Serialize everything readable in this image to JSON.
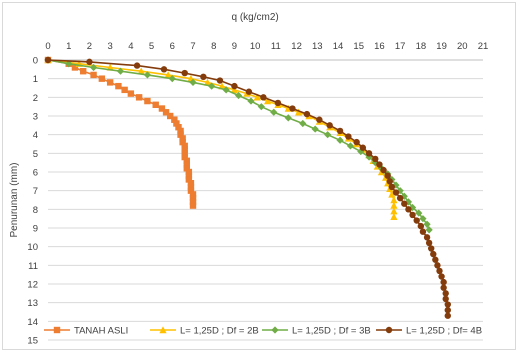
{
  "chart_data": {
    "type": "line",
    "title": "",
    "xlabel": "q (kg/cm2)",
    "ylabel": "Penurunan (mm)",
    "xlim": [
      0,
      21
    ],
    "ylim": [
      0,
      15
    ],
    "y_reversed": true,
    "x_axis_position": "top",
    "xticks": [
      0,
      1,
      2,
      3,
      4,
      5,
      6,
      7,
      8,
      9,
      10,
      11,
      12,
      13,
      14,
      15,
      16,
      17,
      18,
      19,
      20,
      21
    ],
    "yticks": [
      0,
      1,
      2,
      3,
      4,
      5,
      6,
      7,
      8,
      9,
      10,
      11,
      12,
      13,
      14,
      15
    ],
    "grid": "horizontal",
    "legend_position": "bottom",
    "series": [
      {
        "name": "TANAH ASLI",
        "color": "#ed7d31",
        "marker": "square",
        "points": [
          [
            0,
            0
          ],
          [
            1,
            0.2
          ],
          [
            1.3,
            0.4
          ],
          [
            1.7,
            0.6
          ],
          [
            2.2,
            0.8
          ],
          [
            2.6,
            1
          ],
          [
            3,
            1.2
          ],
          [
            3.4,
            1.4
          ],
          [
            3.7,
            1.6
          ],
          [
            4,
            1.8
          ],
          [
            4.4,
            2
          ],
          [
            4.8,
            2.2
          ],
          [
            5.2,
            2.4
          ],
          [
            5.5,
            2.6
          ],
          [
            5.7,
            2.8
          ],
          [
            5.9,
            3
          ],
          [
            6.1,
            3.2
          ],
          [
            6.2,
            3.4
          ],
          [
            6.3,
            3.6
          ],
          [
            6.4,
            3.8
          ],
          [
            6.4,
            4
          ],
          [
            6.5,
            4.2
          ],
          [
            6.5,
            4.4
          ],
          [
            6.6,
            4.6
          ],
          [
            6.6,
            4.8
          ],
          [
            6.6,
            5
          ],
          [
            6.6,
            5.2
          ],
          [
            6.7,
            5.4
          ],
          [
            6.7,
            5.6
          ],
          [
            6.7,
            5.8
          ],
          [
            6.8,
            6
          ],
          [
            6.8,
            6.2
          ],
          [
            6.8,
            6.4
          ],
          [
            6.9,
            6.6
          ],
          [
            6.9,
            6.8
          ],
          [
            6.9,
            7
          ],
          [
            7,
            7.2
          ],
          [
            7,
            7.4
          ],
          [
            7,
            7.6
          ],
          [
            7,
            7.8
          ]
        ]
      },
      {
        "name": "L= 1,25D ; Df = 2B",
        "color": "#ffc000",
        "marker": "triangle",
        "points": [
          [
            0,
            0
          ],
          [
            1.5,
            0.2
          ],
          [
            3,
            0.4
          ],
          [
            4.5,
            0.6
          ],
          [
            5.8,
            0.8
          ],
          [
            6.9,
            1
          ],
          [
            7.7,
            1.2
          ],
          [
            8.4,
            1.4
          ],
          [
            9,
            1.6
          ],
          [
            9.6,
            1.8
          ],
          [
            10.1,
            2
          ],
          [
            10.6,
            2.2
          ],
          [
            11.1,
            2.4
          ],
          [
            11.6,
            2.6
          ],
          [
            12.1,
            2.8
          ],
          [
            12.6,
            3
          ],
          [
            13.1,
            3.3
          ],
          [
            13.6,
            3.6
          ],
          [
            14.1,
            3.9
          ],
          [
            14.5,
            4.2
          ],
          [
            14.9,
            4.5
          ],
          [
            15.2,
            4.8
          ],
          [
            15.5,
            5.1
          ],
          [
            15.7,
            5.4
          ],
          [
            15.9,
            5.7
          ],
          [
            16.1,
            6
          ],
          [
            16.3,
            6.3
          ],
          [
            16.4,
            6.6
          ],
          [
            16.5,
            6.9
          ],
          [
            16.6,
            7.2
          ],
          [
            16.7,
            7.5
          ],
          [
            16.7,
            7.8
          ],
          [
            16.7,
            8.1
          ],
          [
            16.7,
            8.4
          ]
        ]
      },
      {
        "name": "L= 1,25D ; Df = 3B",
        "color": "#70ad47",
        "marker": "diamond",
        "points": [
          [
            0,
            0
          ],
          [
            1,
            0.2
          ],
          [
            2.2,
            0.4
          ],
          [
            3.5,
            0.6
          ],
          [
            4.8,
            0.8
          ],
          [
            6,
            1
          ],
          [
            7,
            1.2
          ],
          [
            7.9,
            1.4
          ],
          [
            8.6,
            1.6
          ],
          [
            9.2,
            1.9
          ],
          [
            9.8,
            2.2
          ],
          [
            10.3,
            2.5
          ],
          [
            10.9,
            2.8
          ],
          [
            11.6,
            3.1
          ],
          [
            12.3,
            3.4
          ],
          [
            12.9,
            3.7
          ],
          [
            13.5,
            4
          ],
          [
            14.1,
            4.3
          ],
          [
            14.6,
            4.6
          ],
          [
            15.1,
            4.9
          ],
          [
            15.5,
            5.2
          ],
          [
            15.8,
            5.5
          ],
          [
            16.1,
            5.8
          ],
          [
            16.4,
            6.1
          ],
          [
            16.6,
            6.4
          ],
          [
            16.8,
            6.7
          ],
          [
            17,
            7
          ],
          [
            17.2,
            7.3
          ],
          [
            17.4,
            7.6
          ],
          [
            17.6,
            7.9
          ],
          [
            17.9,
            8.2
          ],
          [
            18.1,
            8.5
          ],
          [
            18.3,
            8.8
          ],
          [
            18.4,
            9.1
          ]
        ]
      },
      {
        "name": "L= 1,25D ; Df= 4B",
        "color": "#843c0c",
        "marker": "circle",
        "points": [
          [
            0,
            0
          ],
          [
            2,
            0.1
          ],
          [
            4.3,
            0.3
          ],
          [
            5.6,
            0.5
          ],
          [
            6.6,
            0.7
          ],
          [
            7.5,
            0.9
          ],
          [
            8.3,
            1.1
          ],
          [
            9,
            1.4
          ],
          [
            9.7,
            1.7
          ],
          [
            10.4,
            2
          ],
          [
            11.1,
            2.3
          ],
          [
            11.8,
            2.6
          ],
          [
            12.5,
            2.9
          ],
          [
            13.1,
            3.2
          ],
          [
            13.6,
            3.5
          ],
          [
            14.1,
            3.8
          ],
          [
            14.5,
            4.1
          ],
          [
            14.9,
            4.4
          ],
          [
            15.2,
            4.7
          ],
          [
            15.5,
            5
          ],
          [
            15.8,
            5.3
          ],
          [
            16,
            5.6
          ],
          [
            16.2,
            5.9
          ],
          [
            16.4,
            6.2
          ],
          [
            16.5,
            6.5
          ],
          [
            16.6,
            6.8
          ],
          [
            16.8,
            7.1
          ],
          [
            17,
            7.4
          ],
          [
            17.2,
            7.7
          ],
          [
            17.4,
            8
          ],
          [
            17.6,
            8.3
          ],
          [
            17.8,
            8.6
          ],
          [
            18,
            8.9
          ],
          [
            18.1,
            9.2
          ],
          [
            18.3,
            9.5
          ],
          [
            18.4,
            9.8
          ],
          [
            18.5,
            10.1
          ],
          [
            18.6,
            10.4
          ],
          [
            18.7,
            10.7
          ],
          [
            18.8,
            11
          ],
          [
            18.9,
            11.3
          ],
          [
            19,
            11.6
          ],
          [
            19.1,
            11.9
          ],
          [
            19.1,
            12.2
          ],
          [
            19.2,
            12.5
          ],
          [
            19.2,
            12.8
          ],
          [
            19.3,
            13.1
          ],
          [
            19.3,
            13.4
          ],
          [
            19.3,
            13.7
          ]
        ]
      }
    ]
  }
}
